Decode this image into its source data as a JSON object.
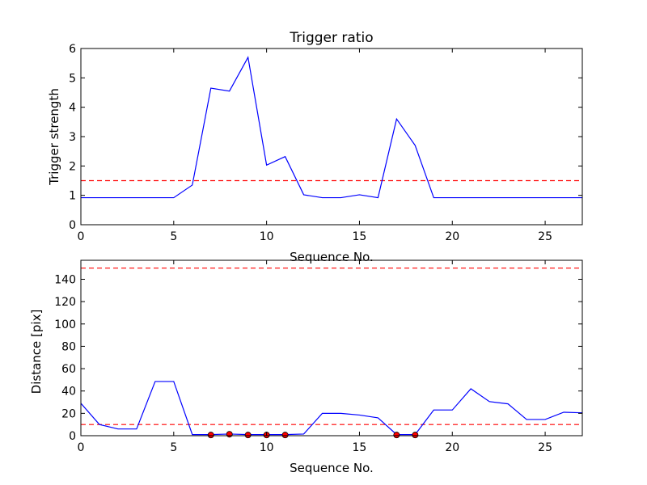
{
  "colors": {
    "line": "#0000ff",
    "threshold": "#ff0000",
    "marker": "#ff0000"
  },
  "chart_data": [
    {
      "type": "line",
      "title": "Trigger ratio",
      "xlabel": "Sequence No.",
      "ylabel": "Trigger strength",
      "xlim": [
        0,
        27
      ],
      "ylim": [
        0,
        6
      ],
      "xticks": [
        0,
        5,
        10,
        15,
        20,
        25
      ],
      "yticks": [
        0,
        1,
        2,
        3,
        4,
        5,
        6
      ],
      "threshold": 1.5,
      "x": [
        0,
        1,
        2,
        3,
        4,
        5,
        6,
        7,
        8,
        9,
        10,
        11,
        12,
        13,
        14,
        15,
        16,
        17,
        18,
        19,
        20,
        21,
        22,
        23,
        24,
        25,
        26,
        27
      ],
      "values": [
        0.92,
        0.92,
        0.92,
        0.92,
        0.92,
        0.92,
        1.35,
        4.65,
        4.55,
        5.7,
        2.03,
        2.32,
        1.02,
        0.92,
        0.92,
        1.02,
        0.92,
        3.6,
        2.7,
        0.92,
        0.92,
        0.92,
        0.92,
        0.92,
        0.92,
        0.92,
        0.92,
        0.92
      ],
      "grid": false
    },
    {
      "type": "line",
      "title": "",
      "xlabel": "Sequence No.",
      "ylabel": "Distance [pix]",
      "xlim": [
        0,
        27
      ],
      "ylim": [
        0,
        157
      ],
      "xticks": [
        0,
        5,
        10,
        15,
        20,
        25
      ],
      "yticks": [
        0,
        20,
        40,
        60,
        80,
        100,
        120,
        140
      ],
      "thresholds": [
        150,
        10
      ],
      "x": [
        0,
        1,
        2,
        3,
        4,
        5,
        6,
        7,
        8,
        9,
        10,
        11,
        12,
        13,
        14,
        15,
        16,
        17,
        18,
        19,
        20,
        21,
        22,
        23,
        24,
        25,
        26,
        27
      ],
      "values": [
        29,
        10,
        6,
        6,
        48.5,
        48.5,
        1,
        1,
        1.5,
        1,
        1,
        1,
        1.5,
        20,
        20,
        18.5,
        16,
        1,
        1,
        23,
        23,
        42,
        30.5,
        28.5,
        14.5,
        14.5,
        21,
        20.5
      ],
      "markers": [
        {
          "x": 7,
          "y": 0.6
        },
        {
          "x": 8,
          "y": 1.3
        },
        {
          "x": 9,
          "y": 0.6
        },
        {
          "x": 10,
          "y": 0.6
        },
        {
          "x": 11,
          "y": 0.6
        },
        {
          "x": 17,
          "y": 0.6
        },
        {
          "x": 18,
          "y": 0.6
        }
      ],
      "grid": false
    }
  ]
}
